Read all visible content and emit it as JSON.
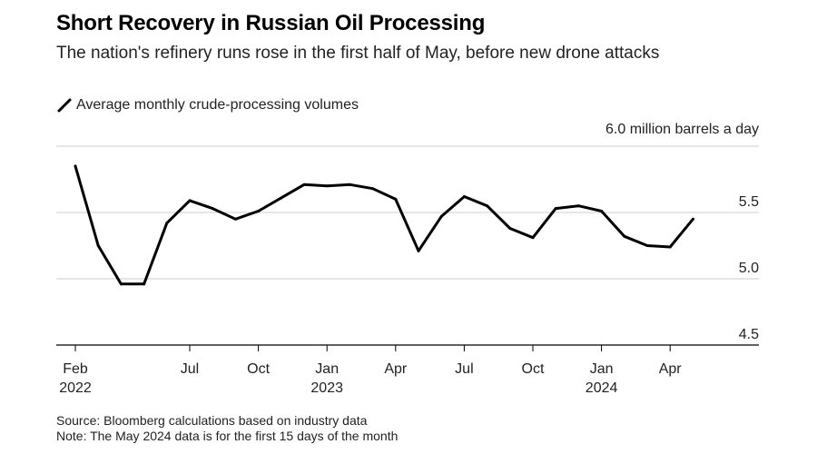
{
  "chart_data": {
    "type": "line",
    "title": "Short Recovery in Russian Oil Processing",
    "subtitle": "The nation's refinery runs rose in the first half of May, before new drone attacks",
    "unit_label": "6.0 million barrels a day",
    "legend": [
      {
        "name": "Average monthly crude-processing volumes",
        "color": "#000000"
      }
    ],
    "x": [
      "2022-02",
      "2022-03",
      "2022-04",
      "2022-05",
      "2022-06",
      "2022-07",
      "2022-08",
      "2022-09",
      "2022-10",
      "2022-11",
      "2022-12",
      "2023-01",
      "2023-02",
      "2023-03",
      "2023-04",
      "2023-05",
      "2023-06",
      "2023-07",
      "2023-08",
      "2023-09",
      "2023-10",
      "2023-11",
      "2023-12",
      "2024-01",
      "2024-02",
      "2024-03",
      "2024-04",
      "2024-05"
    ],
    "series": [
      {
        "name": "Average monthly crude-processing volumes",
        "color": "#000000",
        "values": [
          5.85,
          5.25,
          4.96,
          4.96,
          5.42,
          5.59,
          5.53,
          5.45,
          5.51,
          5.61,
          5.71,
          5.7,
          5.71,
          5.68,
          5.6,
          5.21,
          5.47,
          5.62,
          5.55,
          5.38,
          5.31,
          5.53,
          5.55,
          5.51,
          5.32,
          5.25,
          5.24,
          5.45
        ]
      }
    ],
    "ylim": [
      4.5,
      6.0
    ],
    "y_ticks": [
      4.5,
      5.0,
      5.5
    ],
    "x_ticks": [
      {
        "month": "2022-02",
        "label": "Feb",
        "year": "2022"
      },
      {
        "month": "2022-07",
        "label": "Jul",
        "year": ""
      },
      {
        "month": "2022-10",
        "label": "Oct",
        "year": ""
      },
      {
        "month": "2023-01",
        "label": "Jan",
        "year": "2023"
      },
      {
        "month": "2023-04",
        "label": "Apr",
        "year": ""
      },
      {
        "month": "2023-07",
        "label": "Jul",
        "year": ""
      },
      {
        "month": "2023-10",
        "label": "Oct",
        "year": ""
      },
      {
        "month": "2024-01",
        "label": "Jan",
        "year": "2024"
      },
      {
        "month": "2024-04",
        "label": "Apr",
        "year": ""
      }
    ],
    "grid": true,
    "legend_position": "top-left",
    "source": "Source: Bloomberg calculations based on industry data",
    "note": "Note: The May 2024 data is for the first 15 days of the month"
  },
  "colors": {
    "line": "#000000",
    "grid": "#cccccc",
    "axis": "#000000"
  }
}
